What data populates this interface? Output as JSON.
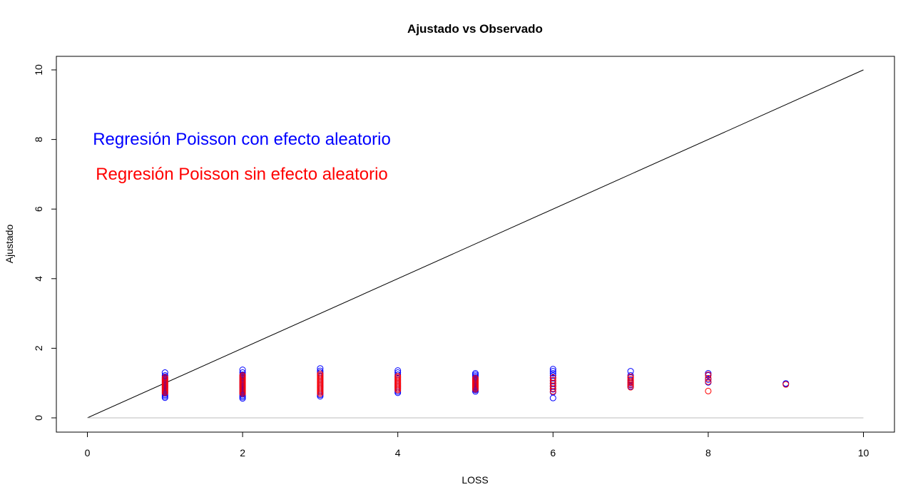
{
  "chart_data": {
    "type": "scatter",
    "title": "Ajustado vs Observado",
    "xlabel": "LOSS",
    "ylabel": "Ajustado",
    "xlim": [
      0,
      10
    ],
    "ylim": [
      0,
      10
    ],
    "x_ticks": [
      "0",
      "2",
      "4",
      "6",
      "8",
      "10"
    ],
    "y_ticks": [
      "0",
      "2",
      "4",
      "6",
      "8",
      "10"
    ],
    "grid": false,
    "reference_lines": [
      {
        "name": "identity",
        "from": [
          0,
          0
        ],
        "to": [
          10,
          10
        ],
        "color": "#000000"
      },
      {
        "name": "zero",
        "from": [
          0,
          0
        ],
        "to": [
          10,
          0
        ],
        "color": "#bebebe"
      }
    ],
    "annotations": [
      {
        "text": "Regresión Poisson con efecto aleatorio",
        "x": 4.9,
        "y": 8,
        "color": "#0000ff"
      },
      {
        "text": "Regresión Poisson sin efecto aleatorio",
        "x": 4.9,
        "y": 7,
        "color": "#ff0000"
      }
    ],
    "series": [
      {
        "color": "#0000ff",
        "marker": "open-circle",
        "points": [
          [
            1,
            0.58
          ],
          [
            1,
            0.62
          ],
          [
            1,
            0.66
          ],
          [
            1,
            0.7
          ],
          [
            1,
            0.74
          ],
          [
            1,
            0.78
          ],
          [
            1,
            0.82
          ],
          [
            1,
            0.86
          ],
          [
            1,
            0.9
          ],
          [
            1,
            0.94
          ],
          [
            1,
            0.98
          ],
          [
            1,
            1.02
          ],
          [
            1,
            1.06
          ],
          [
            1,
            1.1
          ],
          [
            1,
            1.14
          ],
          [
            1,
            1.18
          ],
          [
            1,
            1.22
          ],
          [
            1,
            1.3
          ],
          [
            2,
            0.56
          ],
          [
            2,
            0.6
          ],
          [
            2,
            0.64
          ],
          [
            2,
            0.68
          ],
          [
            2,
            0.72
          ],
          [
            2,
            0.76
          ],
          [
            2,
            0.8
          ],
          [
            2,
            0.84
          ],
          [
            2,
            0.88
          ],
          [
            2,
            0.92
          ],
          [
            2,
            0.96
          ],
          [
            2,
            1.0
          ],
          [
            2,
            1.04
          ],
          [
            2,
            1.08
          ],
          [
            2,
            1.12
          ],
          [
            2,
            1.16
          ],
          [
            2,
            1.2
          ],
          [
            2,
            1.24
          ],
          [
            2,
            1.3
          ],
          [
            2,
            1.38
          ],
          [
            3,
            0.62
          ],
          [
            3,
            0.66
          ],
          [
            3,
            0.7
          ],
          [
            3,
            0.74
          ],
          [
            3,
            0.78
          ],
          [
            3,
            0.82
          ],
          [
            3,
            0.86
          ],
          [
            3,
            0.9
          ],
          [
            3,
            0.94
          ],
          [
            3,
            0.98
          ],
          [
            3,
            1.02
          ],
          [
            3,
            1.06
          ],
          [
            3,
            1.1
          ],
          [
            3,
            1.14
          ],
          [
            3,
            1.18
          ],
          [
            3,
            1.22
          ],
          [
            3,
            1.26
          ],
          [
            3,
            1.3
          ],
          [
            3,
            1.35
          ],
          [
            3,
            1.42
          ],
          [
            4,
            0.72
          ],
          [
            4,
            0.76
          ],
          [
            4,
            0.8
          ],
          [
            4,
            0.84
          ],
          [
            4,
            0.88
          ],
          [
            4,
            0.92
          ],
          [
            4,
            0.96
          ],
          [
            4,
            1.0
          ],
          [
            4,
            1.04
          ],
          [
            4,
            1.08
          ],
          [
            4,
            1.12
          ],
          [
            4,
            1.16
          ],
          [
            4,
            1.2
          ],
          [
            4,
            1.24
          ],
          [
            4,
            1.3
          ],
          [
            4,
            1.36
          ],
          [
            5,
            0.76
          ],
          [
            5,
            0.8
          ],
          [
            5,
            0.84
          ],
          [
            5,
            0.88
          ],
          [
            5,
            0.92
          ],
          [
            5,
            0.96
          ],
          [
            5,
            1.0
          ],
          [
            5,
            1.04
          ],
          [
            5,
            1.08
          ],
          [
            5,
            1.12
          ],
          [
            5,
            1.16
          ],
          [
            5,
            1.2
          ],
          [
            5,
            1.24
          ],
          [
            5,
            1.28
          ],
          [
            6,
            0.57
          ],
          [
            6,
            0.74
          ],
          [
            6,
            0.82
          ],
          [
            6,
            0.9
          ],
          [
            6,
            0.98
          ],
          [
            6,
            1.06
          ],
          [
            6,
            1.14
          ],
          [
            6,
            1.22
          ],
          [
            6,
            1.28
          ],
          [
            6,
            1.34
          ],
          [
            6,
            1.4
          ],
          [
            7,
            0.9
          ],
          [
            7,
            0.96
          ],
          [
            7,
            1.02
          ],
          [
            7,
            1.08
          ],
          [
            7,
            1.16
          ],
          [
            7,
            1.22
          ],
          [
            7,
            1.34
          ],
          [
            8,
            1.02
          ],
          [
            8,
            1.1
          ],
          [
            8,
            1.22
          ],
          [
            8,
            1.28
          ],
          [
            9,
            0.98
          ],
          [
            9,
            0.99
          ]
        ]
      },
      {
        "color": "#ff0000",
        "marker": "open-circle",
        "points": [
          [
            1,
            0.72
          ],
          [
            1,
            0.76
          ],
          [
            1,
            0.8
          ],
          [
            1,
            0.84
          ],
          [
            1,
            0.88
          ],
          [
            1,
            0.92
          ],
          [
            1,
            0.96
          ],
          [
            1,
            1.0
          ],
          [
            1,
            1.04
          ],
          [
            1,
            1.08
          ],
          [
            1,
            1.12
          ],
          [
            1,
            1.16
          ],
          [
            2,
            0.7
          ],
          [
            2,
            0.74
          ],
          [
            2,
            0.78
          ],
          [
            2,
            0.82
          ],
          [
            2,
            0.86
          ],
          [
            2,
            0.9
          ],
          [
            2,
            0.94
          ],
          [
            2,
            0.98
          ],
          [
            2,
            1.02
          ],
          [
            2,
            1.06
          ],
          [
            2,
            1.1
          ],
          [
            2,
            1.14
          ],
          [
            2,
            1.18
          ],
          [
            2,
            1.22
          ],
          [
            3,
            0.7
          ],
          [
            3,
            0.74
          ],
          [
            3,
            0.78
          ],
          [
            3,
            0.82
          ],
          [
            3,
            0.86
          ],
          [
            3,
            0.9
          ],
          [
            3,
            0.94
          ],
          [
            3,
            0.98
          ],
          [
            3,
            1.02
          ],
          [
            3,
            1.06
          ],
          [
            3,
            1.1
          ],
          [
            3,
            1.14
          ],
          [
            3,
            1.18
          ],
          [
            3,
            1.22
          ],
          [
            3,
            1.26
          ],
          [
            4,
            0.8
          ],
          [
            4,
            0.84
          ],
          [
            4,
            0.88
          ],
          [
            4,
            0.92
          ],
          [
            4,
            0.96
          ],
          [
            4,
            1.0
          ],
          [
            4,
            1.04
          ],
          [
            4,
            1.08
          ],
          [
            4,
            1.12
          ],
          [
            4,
            1.16
          ],
          [
            4,
            1.2
          ],
          [
            5,
            0.82
          ],
          [
            5,
            0.86
          ],
          [
            5,
            0.9
          ],
          [
            5,
            0.94
          ],
          [
            5,
            0.98
          ],
          [
            5,
            1.02
          ],
          [
            5,
            1.06
          ],
          [
            5,
            1.1
          ],
          [
            5,
            1.14
          ],
          [
            6,
            0.76
          ],
          [
            6,
            0.84
          ],
          [
            6,
            0.92
          ],
          [
            6,
            1.0
          ],
          [
            6,
            1.08
          ],
          [
            6,
            1.16
          ],
          [
            7,
            0.88
          ],
          [
            7,
            0.94
          ],
          [
            7,
            1.0
          ],
          [
            7,
            1.06
          ],
          [
            7,
            1.12
          ],
          [
            7,
            1.18
          ],
          [
            8,
            0.77
          ],
          [
            8,
            1.04
          ],
          [
            8,
            1.14
          ],
          [
            8,
            1.24
          ],
          [
            9,
            0.96
          ]
        ]
      }
    ]
  }
}
